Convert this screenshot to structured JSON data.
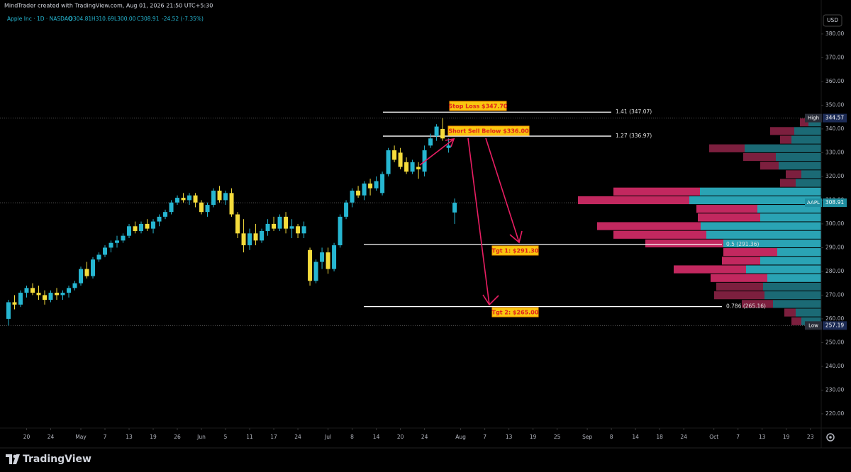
{
  "chart_data": {
    "type": "candlestick",
    "title": "MindTrader created with TradingView.com, Aug 01, 2026 21:50 UTC+5:30",
    "symbol": "Apple Inc · 1D · NASDAQ",
    "ohlc_text": [
      "O304.81",
      "H310.69",
      "L300.00",
      "C308.91",
      "-24.52 (-7.35%)"
    ],
    "currency": "USD",
    "logo": "TradingView",
    "up_color": "#26b6d1",
    "down_color": "#f5dc3c",
    "candles": {
      "open": [
        260,
        267,
        266,
        271,
        273,
        271,
        270,
        268,
        271,
        270,
        271,
        273,
        275,
        281,
        278,
        285,
        287,
        290,
        292,
        293,
        295,
        299,
        297,
        300,
        298,
        301,
        303,
        305,
        309,
        311,
        310,
        312,
        309,
        305,
        308,
        314,
        310,
        313,
        304,
        296,
        291,
        296,
        293,
        297,
        300,
        298,
        303,
        298,
        299,
        296,
        289,
        276,
        284,
        288,
        281,
        291,
        303,
        309,
        314,
        312,
        317,
        315,
        313,
        321,
        331,
        330,
        326,
        322,
        324,
        322,
        333,
        337,
        340,
        332,
        304.81
      ],
      "high": [
        268,
        270,
        272,
        274,
        275,
        274,
        272,
        272,
        273,
        272,
        274,
        276,
        282,
        284,
        286,
        288,
        291,
        293,
        295,
        296,
        300,
        301,
        301,
        302,
        302,
        304,
        306,
        310,
        312,
        313,
        313,
        313,
        310,
        309,
        315,
        316,
        314,
        315,
        305,
        302,
        298,
        300,
        298,
        302,
        303,
        304,
        305,
        302,
        300,
        301,
        290,
        285,
        290,
        290,
        292,
        304,
        310,
        315,
        316,
        318,
        319,
        320,
        322,
        332,
        333,
        332,
        328,
        327,
        326,
        333,
        338,
        342,
        344.57,
        336,
        310.69
      ],
      "low": [
        257.19,
        264,
        265,
        269,
        270,
        268,
        266,
        267,
        268,
        268,
        269,
        272,
        274,
        277,
        277,
        284,
        286,
        288,
        290,
        292,
        294,
        296,
        296,
        297,
        296,
        299,
        302,
        304,
        308,
        309,
        308,
        307,
        304,
        303,
        307,
        309,
        308,
        303,
        294,
        288,
        289,
        291,
        292,
        295,
        297,
        297,
        296,
        294,
        294,
        294,
        274,
        275,
        281,
        279,
        280,
        290,
        302,
        307,
        311,
        310,
        312,
        314,
        312,
        320,
        326,
        323,
        321,
        321,
        319,
        320,
        332,
        335,
        335,
        330,
        300
      ],
      "close": [
        267,
        266,
        271,
        273,
        271,
        270,
        268,
        271,
        270,
        271,
        273,
        275,
        281,
        278,
        285,
        287,
        290,
        292,
        293,
        295,
        299,
        297,
        300,
        298,
        301,
        303,
        305,
        309,
        311,
        310,
        312,
        309,
        305,
        308,
        314,
        310,
        313,
        304,
        296,
        291,
        296,
        293,
        297,
        300,
        298,
        303,
        298,
        299,
        296,
        299,
        276,
        284,
        288,
        281,
        291,
        303,
        309,
        314,
        312,
        317,
        315,
        318,
        321,
        331,
        327,
        324,
        322,
        326,
        323,
        331,
        336,
        341,
        336,
        333,
        308.91
      ]
    },
    "xlim": [
      -1.41,
      134.8
    ],
    "xticks": [
      {
        "value": 3,
        "label": "20"
      },
      {
        "value": 7,
        "label": "24"
      },
      {
        "value": 12,
        "label": "May"
      },
      {
        "value": 16,
        "label": "7"
      },
      {
        "value": 20,
        "label": "13"
      },
      {
        "value": 24,
        "label": "19"
      },
      {
        "value": 28,
        "label": "26"
      },
      {
        "value": 32,
        "label": "Jun"
      },
      {
        "value": 36,
        "label": "5"
      },
      {
        "value": 40,
        "label": "11"
      },
      {
        "value": 44,
        "label": "17"
      },
      {
        "value": 48,
        "label": "24"
      },
      {
        "value": 53,
        "label": "Jul"
      },
      {
        "value": 57,
        "label": "8"
      },
      {
        "value": 61,
        "label": "14"
      },
      {
        "value": 65,
        "label": "20"
      },
      {
        "value": 69,
        "label": "24"
      },
      {
        "value": 75,
        "label": "Aug"
      },
      {
        "value": 79,
        "label": "7"
      },
      {
        "value": 83,
        "label": "13"
      },
      {
        "value": 87,
        "label": "19"
      },
      {
        "value": 91,
        "label": "25"
      },
      {
        "value": 96,
        "label": "Sep"
      },
      {
        "value": 100,
        "label": "8"
      },
      {
        "value": 104,
        "label": "14"
      },
      {
        "value": 108,
        "label": "18"
      },
      {
        "value": 112,
        "label": "24"
      },
      {
        "value": 117,
        "label": "Oct"
      },
      {
        "value": 121,
        "label": "7"
      },
      {
        "value": 125,
        "label": "13"
      },
      {
        "value": 129,
        "label": "19"
      },
      {
        "value": 133,
        "label": "23"
      }
    ],
    "ylim": [
      215.2,
      394.3
    ],
    "yticks": [
      {
        "value": 380,
        "label": "380.00"
      },
      {
        "value": 370,
        "label": "370.00"
      },
      {
        "value": 360,
        "label": "360.00"
      },
      {
        "value": 350,
        "label": "350.00"
      },
      {
        "value": 340,
        "label": "340.00"
      },
      {
        "value": 330,
        "label": "330.00"
      },
      {
        "value": 320,
        "label": "320.00"
      },
      {
        "value": 310,
        "label": "310.00"
      },
      {
        "value": 300,
        "label": "300.00"
      },
      {
        "value": 290,
        "label": "290.00"
      },
      {
        "value": 280,
        "label": "280.00"
      },
      {
        "value": 270,
        "label": "270.00"
      },
      {
        "value": 260,
        "label": "260.00"
      },
      {
        "value": 250,
        "label": "250.00"
      },
      {
        "value": 240,
        "label": "240.00"
      },
      {
        "value": 230,
        "label": "230.00"
      },
      {
        "value": 220,
        "label": "220.00"
      }
    ],
    "price_markers": [
      {
        "name": "High",
        "value": 344.57
      },
      {
        "name": "AAPL",
        "value": 308.91
      },
      {
        "name": "Low",
        "value": 257.19
      }
    ],
    "levels": [
      {
        "label": "1.41 (347.07)",
        "value": 347.07
      },
      {
        "label": "1.27 (336.97)",
        "value": 336.97
      },
      {
        "label": "0.5 (291.36)",
        "value": 291.36
      },
      {
        "label": "0.786 (265.16)",
        "value": 265.16
      }
    ],
    "annotations": [
      "Stop Loss $347.70",
      "Short  Sell Below $336.00",
      "Tgt 1: $291.30",
      "Tgt 2: $265.00"
    ],
    "volume_profile": {
      "up": [
        18,
        38,
        42,
        108,
        64,
        60,
        28,
        36,
        171,
        186,
        90,
        86,
        170,
        162,
        138,
        62,
        86,
        106,
        76,
        82,
        80,
        68,
        36,
        28
      ],
      "down": [
        12,
        34,
        16,
        50,
        46,
        26,
        22,
        22,
        122,
        157,
        86,
        88,
        146,
        131,
        110,
        76,
        54,
        102,
        80,
        66,
        71,
        44,
        16,
        14
      ],
      "value_area_rows": [
        8,
        18
      ]
    }
  }
}
